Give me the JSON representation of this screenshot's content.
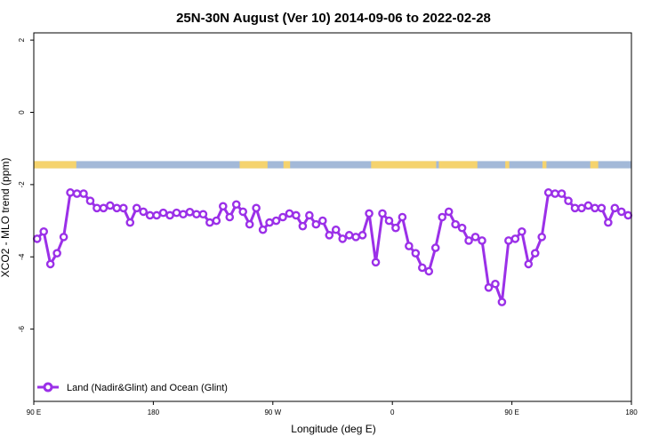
{
  "chart_data": {
    "type": "line",
    "title": "25N-30N August (Ver 10)   2014-09-06 to 2022-02-28",
    "xlabel": "Longitude (deg E)",
    "ylabel": "XCO2 - MLO trend (ppm)",
    "xlim": [
      90,
      540
    ],
    "ylim": [
      -8,
      2.2
    ],
    "xticks": [
      {
        "value": 90,
        "label": "90 E"
      },
      {
        "value": 180,
        "label": "180"
      },
      {
        "value": 270,
        "label": "90 W"
      },
      {
        "value": 360,
        "label": "0"
      },
      {
        "value": 450,
        "label": "90 E"
      },
      {
        "value": 540,
        "label": "180"
      }
    ],
    "yticks": [
      {
        "value": 2,
        "label": "2"
      },
      {
        "value": 0,
        "label": "0"
      },
      {
        "value": -2,
        "label": "-2"
      },
      {
        "value": -4,
        "label": "-4"
      },
      {
        "value": -6,
        "label": "-6"
      }
    ],
    "legend": {
      "position": "bottom-left"
    },
    "land_ocean_band": {
      "y_range": [
        -1.55,
        -1.35
      ],
      "land_color": "#F5D36E",
      "ocean_color": "#A3B9D8",
      "land_segments": [
        [
          90,
          122
        ],
        [
          245,
          266
        ],
        [
          278,
          283
        ],
        [
          344,
          393
        ],
        [
          395,
          424
        ],
        [
          445,
          448
        ],
        [
          473,
          476
        ],
        [
          509,
          515
        ]
      ]
    },
    "series": [
      {
        "name": "Land (Nadir&Glint) and Ocean (Glint)",
        "color": "#9B30E8",
        "x": [
          92.5,
          97.5,
          102.5,
          107.5,
          112.5,
          117.5,
          122.5,
          127.5,
          132.5,
          137.5,
          142.5,
          147.5,
          152.5,
          157.5,
          162.5,
          167.5,
          172.5,
          177.5,
          182.5,
          187.5,
          192.5,
          197.5,
          202.5,
          207.5,
          212.5,
          217.5,
          222.5,
          227.5,
          232.5,
          237.5,
          242.5,
          247.5,
          252.5,
          257.5,
          262.5,
          267.5,
          272.5,
          277.5,
          282.5,
          287.5,
          292.5,
          297.5,
          302.5,
          307.5,
          312.5,
          317.5,
          322.5,
          327.5,
          332.5,
          337.5,
          342.5,
          347.5,
          352.5,
          357.5,
          362.5,
          367.5,
          372.5,
          377.5,
          382.5,
          387.5,
          392.5,
          397.5,
          402.5,
          407.5,
          412.5,
          417.5,
          422.5,
          427.5,
          432.5,
          437.5,
          442.5,
          447.5,
          452.5,
          457.5,
          462.5,
          467.5,
          472.5,
          477.5,
          482.5,
          487.5,
          492.5,
          497.5,
          502.5,
          507.5,
          512.5,
          517.5,
          522.5,
          527.5,
          532.5,
          537.5
        ],
        "y": [
          -3.5,
          -3.3,
          -4.2,
          -3.9,
          -3.45,
          -2.22,
          -2.25,
          -2.25,
          -2.45,
          -2.65,
          -2.65,
          -2.58,
          -2.65,
          -2.65,
          -3.05,
          -2.65,
          -2.75,
          -2.85,
          -2.85,
          -2.78,
          -2.85,
          -2.78,
          -2.82,
          -2.76,
          -2.82,
          -2.82,
          -3.05,
          -3.0,
          -2.6,
          -2.9,
          -2.55,
          -2.75,
          -3.1,
          -2.65,
          -3.25,
          -3.05,
          -3.0,
          -2.9,
          -2.8,
          -2.85,
          -3.15,
          -2.85,
          -3.1,
          -3.0,
          -3.4,
          -3.25,
          -3.5,
          -3.4,
          -3.45,
          -3.4,
          -2.8,
          -4.15,
          -2.8,
          -3.0,
          -3.2,
          -2.9,
          -3.7,
          -3.9,
          -4.3,
          -4.4,
          -3.75,
          -2.9,
          -2.75,
          -3.1,
          -3.2,
          -3.55,
          -3.45,
          -3.55,
          -4.85,
          -4.75,
          -5.25,
          -3.55,
          -3.5,
          -3.3,
          -4.2,
          -3.9,
          -3.45,
          -2.22,
          -2.25,
          -2.25,
          -2.45,
          -2.65,
          -2.65,
          -2.58,
          -2.65,
          -2.65,
          -3.05,
          -2.65,
          -2.75,
          -2.85
        ]
      }
    ]
  }
}
